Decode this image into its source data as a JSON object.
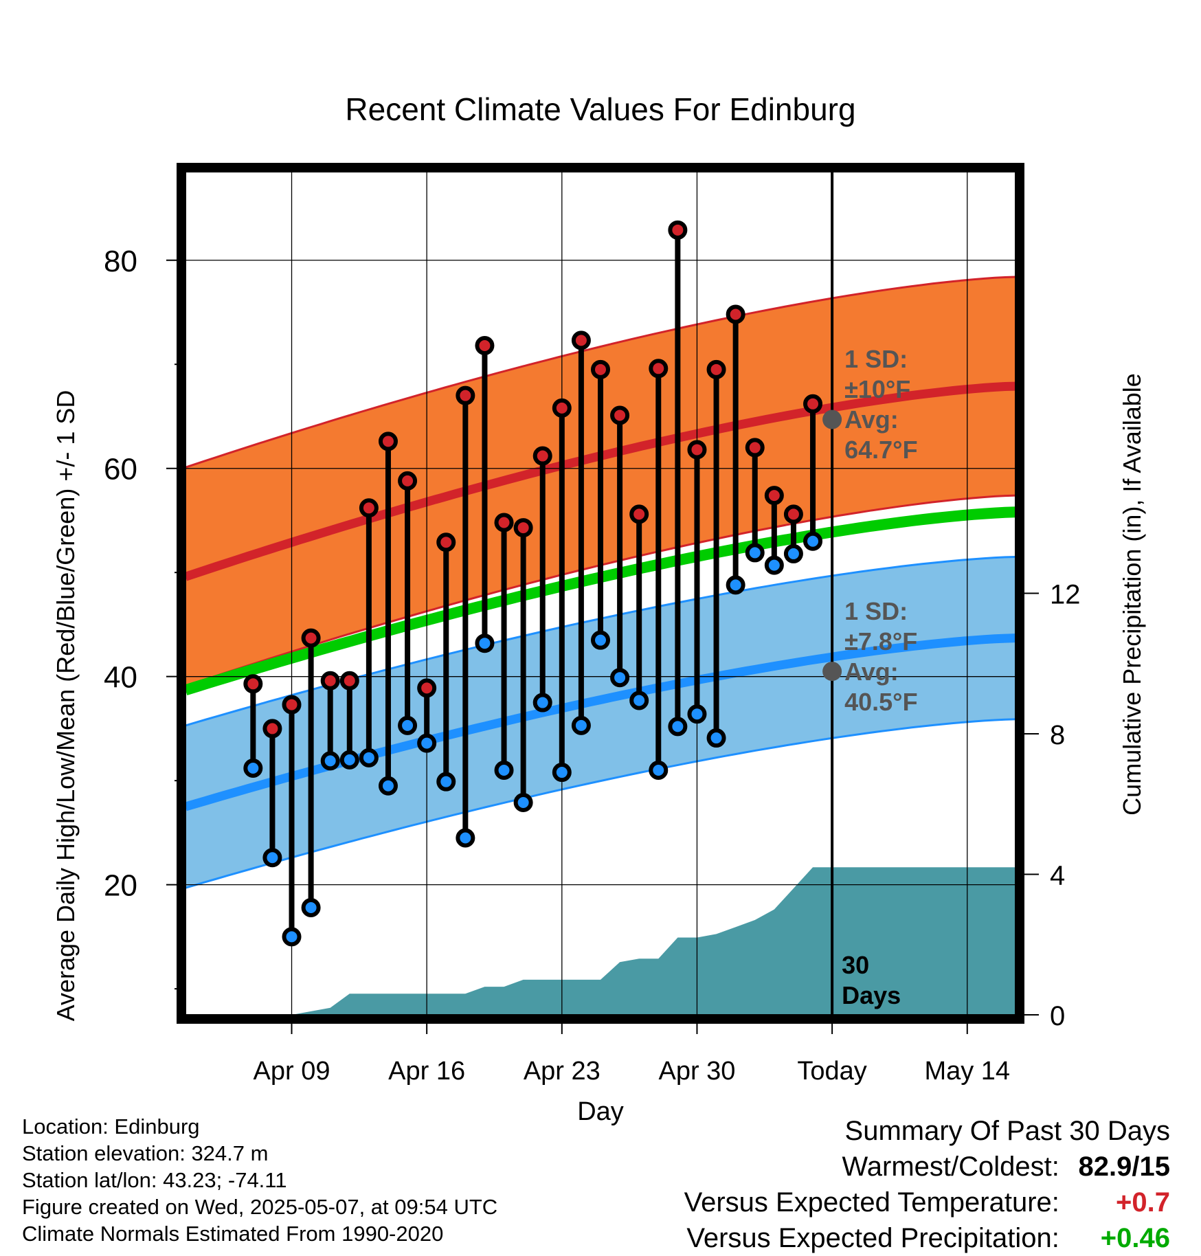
{
  "chart_data": {
    "type": "line",
    "title": "Recent Climate Values For Edinburg",
    "xlabel": "Day",
    "ylabel": "Average Daily High/Low/Mean (Red/Blue/Green) +/- 1 SD",
    "y2label": "Cumulative Precipitation (in), If Available",
    "x_tick_labels": [
      "Apr 09",
      "Apr 16",
      "Apr 23",
      "Apr 30",
      "Today",
      "May 14"
    ],
    "y_ticks": [
      20,
      40,
      60,
      80
    ],
    "y2_ticks": [
      0,
      4,
      8,
      12
    ],
    "ylim": [
      7.5,
      88.5
    ],
    "y2lim": [
      0,
      24
    ],
    "x_range_days": [
      -33.5,
      9.5
    ],
    "grid": true,
    "today_label": "30\nDays",
    "daily_highs": [
      39.3,
      35.0,
      37.3,
      43.7,
      39.6,
      39.6,
      56.2,
      62.6,
      58.8,
      38.9,
      52.9,
      67.0,
      71.8,
      54.8,
      54.3,
      61.2,
      65.8,
      72.3,
      69.5,
      65.1,
      55.6,
      69.6,
      82.9,
      61.8,
      69.5,
      74.8,
      62.0,
      57.4,
      55.6,
      66.2
    ],
    "daily_lows": [
      31.2,
      22.6,
      15.0,
      17.8,
      31.9,
      32.0,
      32.2,
      29.5,
      35.3,
      33.6,
      29.9,
      24.5,
      43.2,
      31.0,
      27.9,
      37.5,
      30.8,
      35.3,
      43.5,
      39.9,
      37.7,
      31.0,
      35.2,
      36.4,
      34.1,
      48.8,
      51.9,
      50.7,
      51.8,
      53.0
    ],
    "normal_high": {
      "name": "Avg",
      "start": 49.6,
      "end": 67.9,
      "sd_label": "1 SD:",
      "sd_value": "±10°F",
      "avg_label": "Avg:",
      "avg_value": "64.7°F",
      "today_value": 64.7,
      "sd": 10.5
    },
    "normal_low": {
      "name": "Avg",
      "start": 27.5,
      "end": 43.7,
      "sd_label": "1 SD:",
      "sd_value": "±7.8°F",
      "avg_label": "Avg:",
      "avg_value": "40.5°F",
      "today_value": 40.5,
      "sd": 7.8
    },
    "normal_mean": {
      "start": 38.7,
      "end": 55.8
    },
    "cumulative_precip": [
      0.0,
      0.0,
      0.0,
      0.0,
      0.1,
      0.2,
      0.6,
      0.6,
      0.6,
      0.6,
      0.6,
      0.6,
      0.6,
      0.8,
      0.8,
      1.0,
      1.0,
      1.0,
      1.0,
      1.0,
      1.5,
      1.6,
      1.6,
      2.2,
      2.2,
      2.3,
      2.5,
      2.7,
      3.0,
      3.6,
      4.2,
      4.2
    ],
    "colors": {
      "high_band": "#f47a30",
      "high_line": "#d2232a",
      "low_band": "#80c0e8",
      "low_line": "#1e90ff",
      "mean_line": "#00cc00",
      "precip": "#4a9aa4",
      "high_dot": "#d2232a",
      "low_dot": "#1e90ff",
      "annotation": "#555555",
      "positive": "#00aa00",
      "warm": "#d2232a"
    }
  },
  "info": {
    "location": "Location: Edinburg",
    "elevation": "Station elevation: 324.7 m",
    "latlon": "Station lat/lon: 43.23; -74.11",
    "created": "Figure created on Wed, 2025-05-07, at 09:54 UTC",
    "normals": "Climate Normals Estimated From 1990-2020"
  },
  "summary": {
    "title": "Summary Of Past 30 Days",
    "warmest_label": "Warmest/Coldest:",
    "warmest_value": "82.9/15",
    "temp_label": "Versus Expected Temperature:",
    "temp_value": "+0.7",
    "precip_label": "Versus Expected Precipitation:",
    "precip_value": "+0.46"
  }
}
